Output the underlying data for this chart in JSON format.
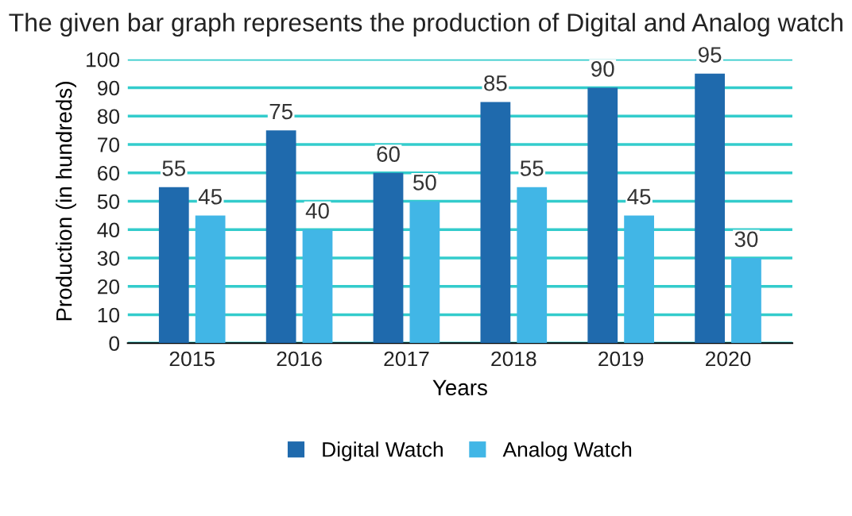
{
  "chart_data": {
    "type": "bar",
    "title": "The given bar graph represents the production of Digital and Analog watch",
    "xlabel": "Years",
    "ylabel": "Production (in hundreds)",
    "categories": [
      "2015",
      "2016",
      "2017",
      "2018",
      "2019",
      "2020"
    ],
    "series": [
      {
        "name": "Digital Watch",
        "color": "#1f6aad",
        "values": [
          55,
          75,
          60,
          85,
          90,
          95
        ]
      },
      {
        "name": "Analog Watch",
        "color": "#41b6e6",
        "values": [
          45,
          40,
          50,
          55,
          45,
          30
        ]
      }
    ],
    "ylim": [
      0,
      100
    ],
    "yticks": [
      0,
      10,
      20,
      30,
      40,
      50,
      60,
      70,
      80,
      90,
      100
    ],
    "grid": "y",
    "legend": "bottom",
    "data_labels": true
  }
}
